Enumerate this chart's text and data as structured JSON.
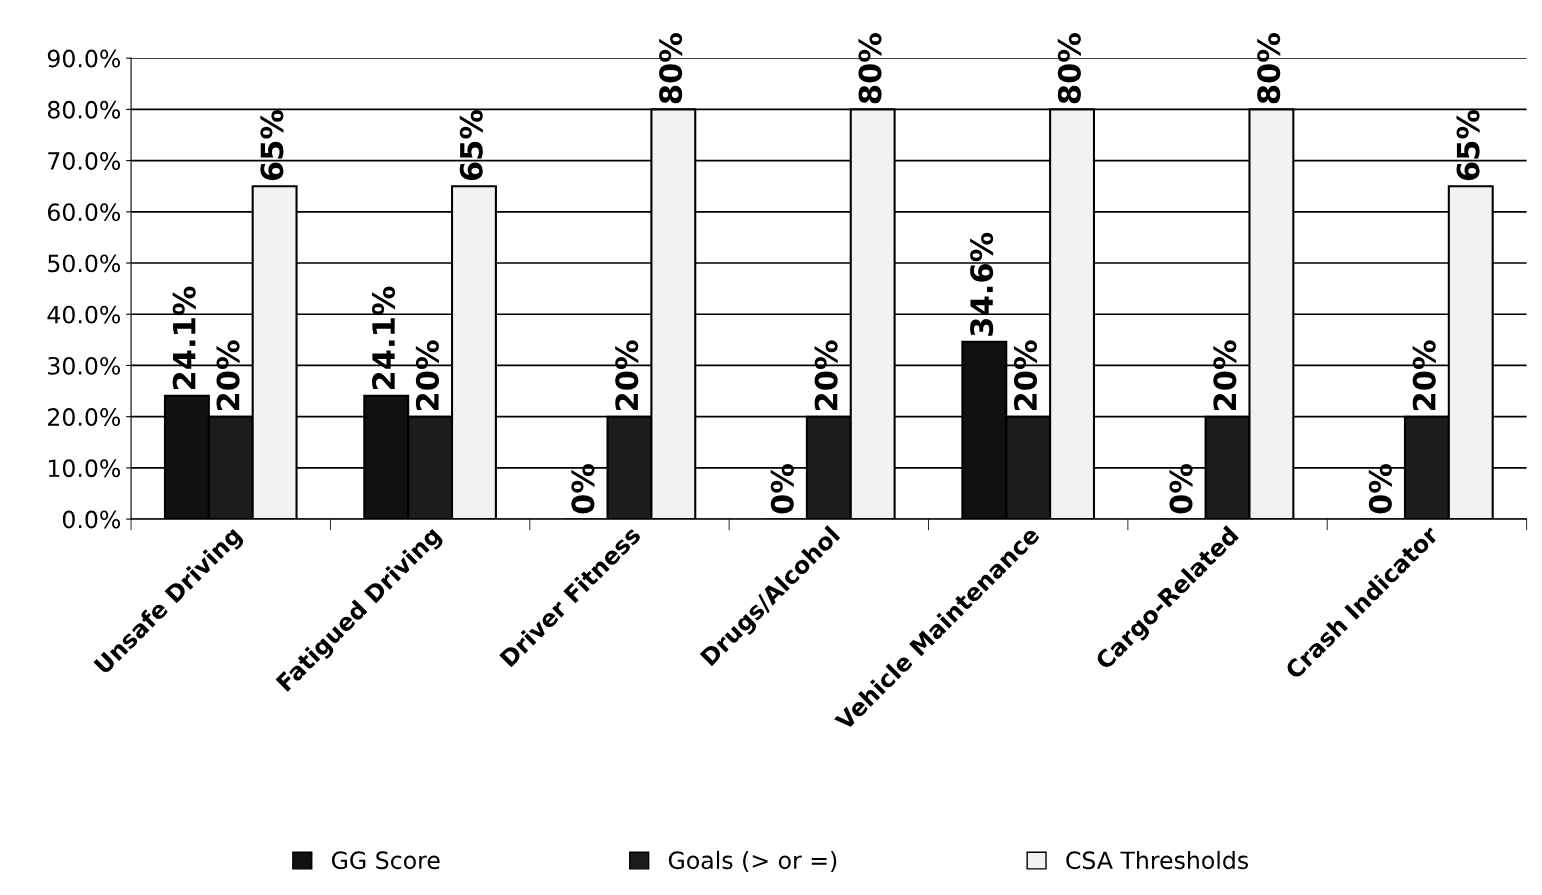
{
  "chart_data": {
    "type": "bar",
    "categories": [
      "Unsafe Driving",
      "Fatigued Driving",
      "Driver Fitness",
      "Drugs/Alcohol",
      "Vehicle Maintenance",
      "Cargo-Related",
      "Crash Indicator"
    ],
    "series": [
      {
        "name": "GG Score",
        "color": "#111111",
        "values": [
          24.1,
          24.1,
          0,
          0,
          34.6,
          0,
          0
        ],
        "value_labels": [
          "24.1%",
          "24.1%",
          "0%",
          "0%",
          "34.6%",
          "0%",
          "0%"
        ]
      },
      {
        "name": "Goals (> or =)",
        "color": "#1c1c1c",
        "values": [
          20,
          20,
          20,
          20,
          20,
          20,
          20
        ],
        "value_labels": [
          "20%",
          "20%",
          "20%",
          "20%",
          "20%",
          "20%",
          "20%"
        ]
      },
      {
        "name": "CSA Thresholds",
        "color": "#f2f2f2",
        "values": [
          65,
          65,
          80,
          80,
          80,
          80,
          65
        ],
        "value_labels": [
          "65%",
          "65%",
          "80%",
          "80%",
          "80%",
          "80%",
          "65%"
        ]
      }
    ],
    "ylim": [
      0,
      90
    ],
    "yticks": [
      {
        "value": 0,
        "label": "0.0%"
      },
      {
        "value": 10,
        "label": "10.0%"
      },
      {
        "value": 20,
        "label": "20.0%"
      },
      {
        "value": 30,
        "label": "30.0%"
      },
      {
        "value": 40,
        "label": "40.0%"
      },
      {
        "value": 50,
        "label": "50.0%"
      },
      {
        "value": 60,
        "label": "60.0%"
      },
      {
        "value": 70,
        "label": "70.0%"
      },
      {
        "value": 80,
        "label": "80.0%"
      },
      {
        "value": 90,
        "label": "90.0%"
      }
    ],
    "grid": "y",
    "legend": "bottom"
  }
}
